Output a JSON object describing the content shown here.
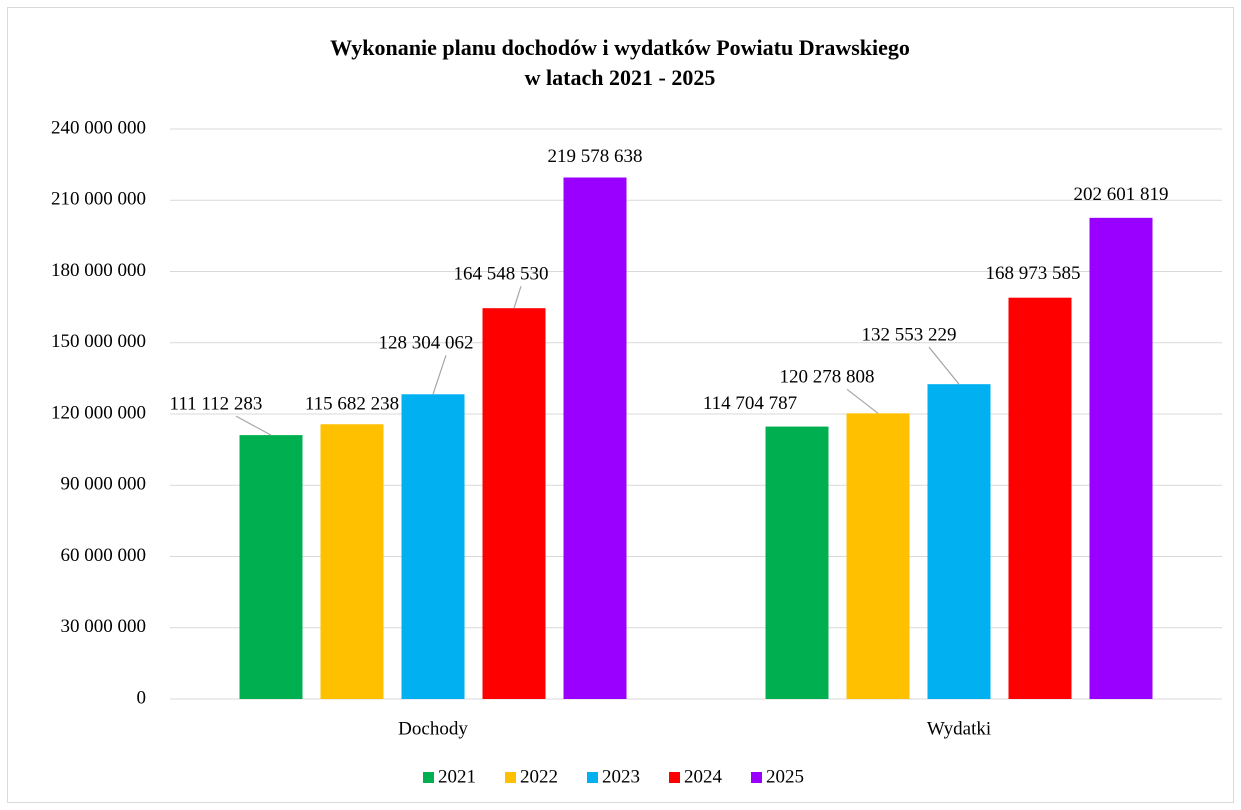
{
  "chart_data": {
    "type": "bar",
    "title": [
      "Wykonanie planu dochodów i wydatków Powiatu Drawskiego",
      "w latach 2021 - 2025"
    ],
    "categories": [
      "Dochody",
      "Wydatki"
    ],
    "series": [
      {
        "name": "2021",
        "color": "#00b050",
        "values": [
          111112283,
          114704787
        ],
        "value_labels": [
          "111 112 283",
          "114 704 787"
        ]
      },
      {
        "name": "2022",
        "color": "#ffc000",
        "values": [
          115682238,
          120278808
        ],
        "value_labels": [
          "115 682 238",
          "120 278 808"
        ]
      },
      {
        "name": "2023",
        "color": "#00b0f0",
        "values": [
          128304062,
          132553229
        ],
        "value_labels": [
          "128 304 062",
          "132 553 229"
        ]
      },
      {
        "name": "2024",
        "color": "#ff0000",
        "values": [
          164548530,
          168973585
        ],
        "value_labels": [
          "164 548 530",
          "168 973 585"
        ]
      },
      {
        "name": "2025",
        "color": "#9900ff",
        "values": [
          219578638,
          202601819
        ],
        "value_labels": [
          "219 578 638",
          "202 601 819"
        ]
      }
    ],
    "ylim": [
      0,
      240000000
    ],
    "yticks": [
      0,
      {
        "value": 30000000,
        "label": "30 000 000"
      },
      {
        "value": 60000000,
        "label": "60 000 000"
      },
      {
        "value": 90000000,
        "label": "90 000 000"
      },
      {
        "value": 120000000,
        "label": "120 000 000"
      },
      {
        "value": 150000000,
        "label": "150 000 000"
      },
      {
        "value": 180000000,
        "label": "180 000 000"
      },
      {
        "value": 210000000,
        "label": "210 000 000"
      },
      {
        "value": 240000000,
        "label": "240 000 000"
      }
    ],
    "grid": true,
    "legend": "bottom"
  }
}
